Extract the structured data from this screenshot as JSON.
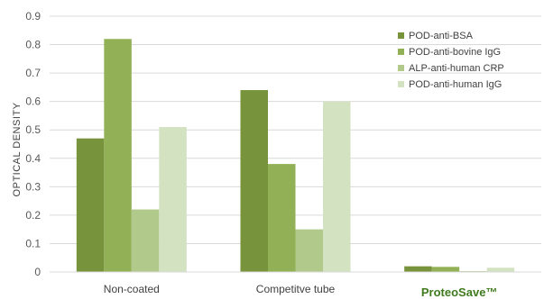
{
  "chart_data": {
    "type": "bar",
    "title": "",
    "xlabel": "",
    "ylabel": "OPTICAL DENSITY",
    "ylim": [
      0,
      0.9
    ],
    "yticks": [
      "0",
      "0.1",
      "0.2",
      "0.3",
      "0.4",
      "0.5",
      "0.6",
      "0.7",
      "0.8",
      "0.9"
    ],
    "grid": true,
    "legend_position": "top-right",
    "categories": [
      "Non-coated",
      "Competitve tube",
      "ProteoSave™"
    ],
    "series": [
      {
        "name": "POD-anti-BSA",
        "color": "#77933c",
        "values": [
          0.47,
          0.64,
          0.02
        ]
      },
      {
        "name": "POD-anti-bovine IgG",
        "color": "#92b156",
        "values": [
          0.82,
          0.38,
          0.018
        ]
      },
      {
        "name": "ALP-anti-human CRP",
        "color": "#b1c98a",
        "values": [
          0.22,
          0.15,
          0.003
        ]
      },
      {
        "name": "POD-anti-human IgG",
        "color": "#d3e2c0",
        "values": [
          0.51,
          0.6,
          0.015
        ]
      }
    ]
  }
}
